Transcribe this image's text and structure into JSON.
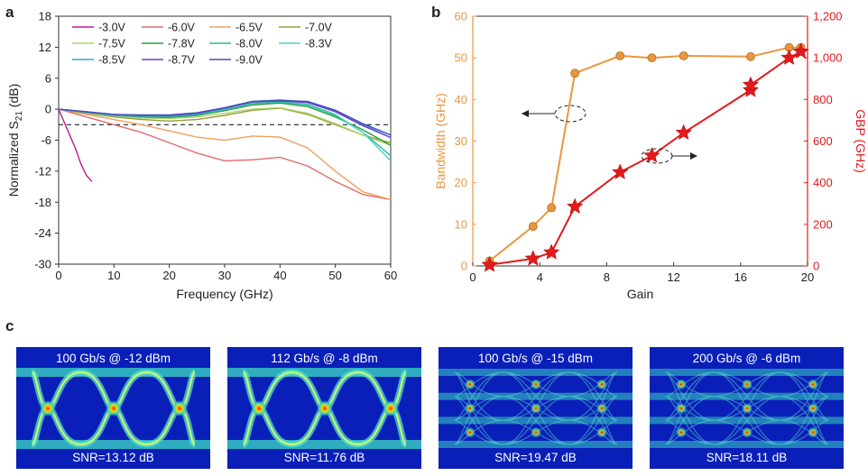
{
  "panels": {
    "a": "a",
    "b": "b",
    "c": "c"
  },
  "colors": {
    "orange": "#e8973f",
    "red": "#e31a1c",
    "eye_bg": "#0a1fb8"
  },
  "chart_data": [
    {
      "type": "line",
      "panel": "a",
      "title": "",
      "xlabel": "Frequency (GHz)",
      "ylabel_main": "Normalized S",
      "ylabel_sub": "21",
      "ylabel_unit": " (dB)",
      "xlim": [
        0,
        60
      ],
      "ylim": [
        -30,
        18
      ],
      "xticks": [
        0,
        10,
        20,
        30,
        40,
        50,
        60
      ],
      "yticks": [
        -30,
        -24,
        -18,
        -12,
        -6,
        0,
        6,
        12,
        18
      ],
      "reference_line_y": -3,
      "legend_position": "top-left",
      "series": [
        {
          "name": "-3.0V",
          "color": "#c2188f",
          "x": [
            0,
            1,
            2,
            3,
            4,
            5,
            6
          ],
          "y": [
            0,
            -2.5,
            -5,
            -7.5,
            -10.5,
            -12.8,
            -14
          ]
        },
        {
          "name": "-6.0V",
          "color": "#e36a6a",
          "x": [
            0,
            5,
            10,
            15,
            20,
            25,
            30,
            35,
            40,
            45,
            50,
            55,
            60
          ],
          "y": [
            0,
            -1.5,
            -3,
            -4.5,
            -6.5,
            -8.5,
            -10,
            -9.8,
            -9.3,
            -11,
            -14,
            -16.5,
            -17.5
          ]
        },
        {
          "name": "-6.5V",
          "color": "#f0a060",
          "x": [
            0,
            5,
            10,
            15,
            20,
            25,
            30,
            35,
            40,
            45,
            50,
            55,
            60
          ],
          "y": [
            0,
            -1,
            -2,
            -3,
            -4.2,
            -5.4,
            -6,
            -5.2,
            -5.4,
            -7.5,
            -12,
            -16,
            -17.5
          ]
        },
        {
          "name": "-7.0V",
          "color": "#9a9a3a",
          "x": [
            0,
            5,
            10,
            15,
            20,
            25,
            30,
            35,
            40,
            45,
            50,
            55,
            60
          ],
          "y": [
            0,
            -0.8,
            -1.5,
            -2,
            -2.3,
            -2,
            -1.2,
            -0.2,
            0.2,
            -1,
            -3,
            -5,
            -6.5
          ]
        },
        {
          "name": "-7.5V",
          "color": "#a8d86a",
          "x": [
            0,
            5,
            10,
            15,
            20,
            25,
            30,
            35,
            40,
            45,
            50,
            55,
            60
          ],
          "y": [
            0,
            -0.7,
            -1.3,
            -1.7,
            -1.8,
            -1.5,
            -0.8,
            0,
            0.3,
            -0.8,
            -2.8,
            -5,
            -7
          ]
        },
        {
          "name": "-7.8V",
          "color": "#2e9e3c",
          "x": [
            0,
            5,
            10,
            15,
            20,
            25,
            30,
            35,
            40,
            45,
            50,
            55,
            60
          ],
          "y": [
            0,
            -0.6,
            -1.2,
            -1.5,
            -1.6,
            -1.2,
            -0.3,
            0.8,
            1.2,
            0.5,
            -1.5,
            -4,
            -7
          ]
        },
        {
          "name": "-8.0V",
          "color": "#2cb89a",
          "x": [
            0,
            5,
            10,
            15,
            20,
            25,
            30,
            35,
            40,
            45,
            50,
            55,
            60
          ],
          "y": [
            0,
            -0.6,
            -1.2,
            -1.4,
            -1.4,
            -1,
            -0.1,
            1.1,
            1.4,
            0.8,
            -1.2,
            -4.5,
            -9
          ]
        },
        {
          "name": "-8.3V",
          "color": "#4fd0c8",
          "x": [
            0,
            5,
            10,
            15,
            20,
            25,
            30,
            35,
            40,
            45,
            50,
            55,
            60
          ],
          "y": [
            0,
            -0.6,
            -1.1,
            -1.3,
            -1.3,
            -0.9,
            0,
            1.3,
            1.6,
            1,
            -1,
            -4.5,
            -10
          ]
        },
        {
          "name": "-8.5V",
          "color": "#2aa8e0",
          "x": [
            0,
            5,
            10,
            15,
            20,
            25,
            30,
            35,
            40,
            45,
            50,
            55,
            60
          ],
          "y": [
            0,
            -0.6,
            -1.1,
            -1.3,
            -1.3,
            -0.9,
            0.1,
            1.5,
            1.8,
            1.4,
            -0.3,
            -3,
            -5.5
          ]
        },
        {
          "name": "-8.7V",
          "color": "#6a3fc8",
          "x": [
            0,
            5,
            10,
            15,
            20,
            25,
            30,
            35,
            40,
            45,
            50,
            55,
            60
          ],
          "y": [
            0,
            -0.5,
            -1,
            -1.2,
            -1.2,
            -0.8,
            0.2,
            1.4,
            1.6,
            1.3,
            -0.5,
            -3.2,
            -5.5
          ]
        },
        {
          "name": "-9.0V",
          "color": "#4a4fb8",
          "x": [
            0,
            5,
            10,
            15,
            20,
            25,
            30,
            35,
            40,
            45,
            50,
            55,
            60
          ],
          "y": [
            0,
            -0.5,
            -1,
            -1.1,
            -1.1,
            -0.7,
            0.3,
            1.5,
            1.7,
            1.5,
            -0.2,
            -2.8,
            -5
          ]
        }
      ]
    },
    {
      "type": "line",
      "panel": "b",
      "title": "",
      "xlabel": "Gain",
      "ylabel_left": "Bandwidth (GHz)",
      "ylabel_right": "GBP (GHz)",
      "xlim": [
        0,
        20
      ],
      "ylim_left": [
        0,
        60
      ],
      "ylim_right": [
        0,
        1200
      ],
      "xticks": [
        0,
        4,
        8,
        12,
        16,
        20
      ],
      "yticks_left": [
        0,
        10,
        20,
        30,
        40,
        50,
        60
      ],
      "yticks_right": [
        0,
        200,
        400,
        600,
        800,
        1000,
        1200
      ],
      "ytick_labels_right": [
        "0",
        "200",
        "400",
        "600",
        "800",
        "1,000",
        "1,200"
      ],
      "series": [
        {
          "name": "",
          "axis": "left",
          "marker": "circle",
          "color": "#e8973f",
          "x": [
            1.0,
            3.6,
            4.7,
            6.1,
            8.8,
            10.7,
            12.6,
            16.6,
            18.9,
            19.6
          ],
          "y": [
            1.2,
            9.5,
            14,
            46.3,
            50.5,
            50,
            50.5,
            50.3,
            52.5,
            52.5
          ]
        },
        {
          "name": "",
          "axis": "right",
          "marker": "star",
          "color": "#e31a1c",
          "x": [
            1.0,
            3.6,
            4.7,
            6.1,
            8.8,
            10.7,
            12.6,
            16.6,
            16.6,
            18.9,
            19.6
          ],
          "y": [
            5,
            35,
            65,
            285,
            450,
            530,
            640,
            845,
            870,
            1000,
            1030
          ]
        }
      ]
    }
  ],
  "eye_diagrams": [
    {
      "title": "100 Gb/s @ -12 dBm",
      "snr": "SNR=13.12 dB",
      "levels": 2
    },
    {
      "title": "112 Gb/s @ -8 dBm",
      "snr": "SNR=11.76 dB",
      "levels": 2
    },
    {
      "title": "100 Gb/s @ -15 dBm",
      "snr": "SNR=19.47 dB",
      "levels": 4
    },
    {
      "title": "200 Gb/s @ -6 dBm",
      "snr": "SNR=18.11 dB",
      "levels": 4
    }
  ]
}
